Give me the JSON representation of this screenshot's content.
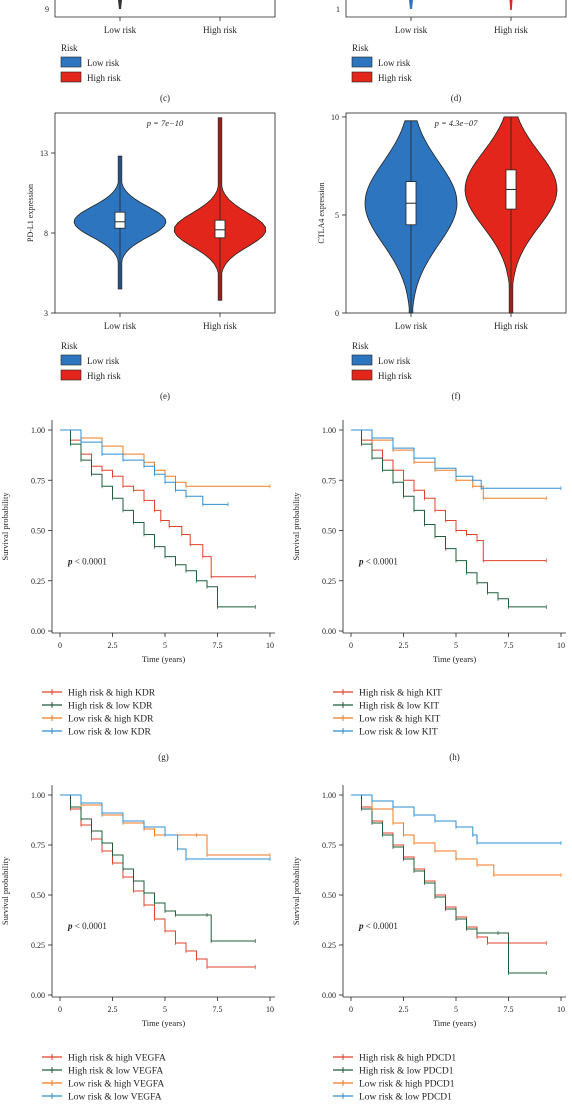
{
  "axis_defaults": {
    "time_label": "Time (years)",
    "survival_label": "Survival probability"
  },
  "panels_top": [
    {
      "id": "c",
      "caption": "(c)",
      "legend_title": "Risk",
      "legend_items": [
        "Low risk",
        "High risk"
      ],
      "tick_left": "9",
      "categories": [
        "Low risk",
        "High risk"
      ]
    },
    {
      "id": "d",
      "caption": "(d)",
      "legend_title": "Risk",
      "legend_items": [
        "Low risk",
        "High risk"
      ],
      "tick_left": "1",
      "categories": [
        "Low risk",
        "High risk"
      ]
    }
  ],
  "colors": {
    "low": "#2e75c0",
    "high": "#e3261b",
    "hr_high": "#e0412b",
    "hr_low": "#1f5e3a",
    "lr_high": "#f07a1f",
    "lr_low": "#2f8fd0"
  },
  "chart_data": [
    {
      "id": "e",
      "type": "violin",
      "caption": "(e)",
      "ylabel": "PD-L1 expression",
      "pvalue": "p = 7e−10",
      "yticks": [
        3,
        8,
        13
      ],
      "ylim": [
        3,
        15.5
      ],
      "categories": [
        "Low risk",
        "High risk"
      ],
      "legend_title": "Risk",
      "legend_items": [
        "Low risk",
        "High risk"
      ],
      "boxes": [
        {
          "q1": 8.3,
          "median": 8.7,
          "q3": 9.3,
          "min": 4.5,
          "max": 12.8
        },
        {
          "q1": 7.7,
          "median": 8.2,
          "q3": 8.8,
          "min": 3.8,
          "max": 15.2
        }
      ]
    },
    {
      "id": "f",
      "type": "violin",
      "caption": "(f)",
      "ylabel": "CTLA4 expression",
      "pvalue": "p = 4.3e−07",
      "yticks": [
        0,
        5,
        10
      ],
      "ylim": [
        0,
        10.2
      ],
      "categories": [
        "Low risk",
        "High risk"
      ],
      "legend_title": "Risk",
      "legend_items": [
        "Low risk",
        "High risk"
      ],
      "boxes": [
        {
          "q1": 4.5,
          "median": 5.6,
          "q3": 6.7,
          "min": 0.0,
          "max": 9.8
        },
        {
          "q1": 5.3,
          "median": 6.3,
          "q3": 7.3,
          "min": 0.0,
          "max": 10.0
        }
      ]
    },
    {
      "id": "g",
      "type": "line",
      "caption": "(g)",
      "xlabel": "Time (years)",
      "ylabel": "Survival probability",
      "pvalue": "p < 0.0001",
      "xticks": [
        "0",
        "2.5",
        "5",
        "7.5",
        "10"
      ],
      "yticks": [
        "0.00",
        "0.25",
        "0.50",
        "0.75",
        "1.00"
      ],
      "xlim": [
        0,
        10
      ],
      "ylim": [
        0,
        1
      ],
      "series": [
        {
          "name": "High risk & high KDR",
          "color_key": "hr_high",
          "points": [
            [
              0,
              1.0
            ],
            [
              0.5,
              0.95
            ],
            [
              1,
              0.88
            ],
            [
              1.5,
              0.82
            ],
            [
              2,
              0.8
            ],
            [
              2.5,
              0.77
            ],
            [
              3,
              0.72
            ],
            [
              3.5,
              0.7
            ],
            [
              4,
              0.65
            ],
            [
              4.5,
              0.6
            ],
            [
              4.8,
              0.55
            ],
            [
              5.2,
              0.52
            ],
            [
              5.8,
              0.48
            ],
            [
              6.2,
              0.43
            ],
            [
              6.8,
              0.37
            ],
            [
              7.2,
              0.27
            ],
            [
              9.3,
              0.27
            ]
          ]
        },
        {
          "name": "High risk & low KDR",
          "color_key": "hr_low",
          "points": [
            [
              0,
              1.0
            ],
            [
              0.5,
              0.93
            ],
            [
              1,
              0.85
            ],
            [
              1.5,
              0.78
            ],
            [
              2,
              0.72
            ],
            [
              2.5,
              0.66
            ],
            [
              3,
              0.6
            ],
            [
              3.5,
              0.54
            ],
            [
              4,
              0.48
            ],
            [
              4.5,
              0.42
            ],
            [
              5,
              0.37
            ],
            [
              5.5,
              0.33
            ],
            [
              6,
              0.3
            ],
            [
              6.5,
              0.25
            ],
            [
              7,
              0.22
            ],
            [
              7.5,
              0.12
            ],
            [
              9.3,
              0.12
            ]
          ]
        },
        {
          "name": "Low risk & high KDR",
          "color_key": "lr_high",
          "points": [
            [
              0,
              1.0
            ],
            [
              1,
              0.96
            ],
            [
              2,
              0.92
            ],
            [
              3,
              0.88
            ],
            [
              4,
              0.84
            ],
            [
              4.5,
              0.8
            ],
            [
              5,
              0.77
            ],
            [
              5.5,
              0.74
            ],
            [
              6,
              0.72
            ],
            [
              10,
              0.72
            ]
          ]
        },
        {
          "name": "Low risk & low KDR",
          "color_key": "lr_low",
          "points": [
            [
              0,
              1.0
            ],
            [
              1,
              0.94
            ],
            [
              2,
              0.88
            ],
            [
              3,
              0.85
            ],
            [
              4,
              0.82
            ],
            [
              4.5,
              0.78
            ],
            [
              5,
              0.74
            ],
            [
              5.5,
              0.7
            ],
            [
              6,
              0.67
            ],
            [
              6.8,
              0.63
            ],
            [
              8,
              0.63
            ]
          ]
        }
      ]
    },
    {
      "id": "h",
      "type": "line",
      "caption": "(h)",
      "xlabel": "Time (years)",
      "ylabel": "Survival probability",
      "pvalue": "p < 0.0001",
      "xticks": [
        "0",
        "2.5",
        "5",
        "7.5",
        "10"
      ],
      "yticks": [
        "0.00",
        "0.25",
        "0.50",
        "0.75",
        "1.00"
      ],
      "xlim": [
        0,
        10
      ],
      "ylim": [
        0,
        1
      ],
      "series": [
        {
          "name": "High risk & high KIT",
          "color_key": "hr_high",
          "points": [
            [
              0,
              1.0
            ],
            [
              0.5,
              0.95
            ],
            [
              1,
              0.9
            ],
            [
              1.5,
              0.85
            ],
            [
              2,
              0.8
            ],
            [
              2.5,
              0.75
            ],
            [
              3,
              0.7
            ],
            [
              3.5,
              0.66
            ],
            [
              4,
              0.6
            ],
            [
              4.5,
              0.55
            ],
            [
              5,
              0.5
            ],
            [
              5.5,
              0.48
            ],
            [
              6,
              0.45
            ],
            [
              6.3,
              0.35
            ],
            [
              9.3,
              0.35
            ]
          ]
        },
        {
          "name": "High risk & low KIT",
          "color_key": "hr_low",
          "points": [
            [
              0,
              1.0
            ],
            [
              0.5,
              0.93
            ],
            [
              1,
              0.86
            ],
            [
              1.5,
              0.8
            ],
            [
              2,
              0.74
            ],
            [
              2.5,
              0.67
            ],
            [
              3,
              0.6
            ],
            [
              3.5,
              0.53
            ],
            [
              4,
              0.47
            ],
            [
              4.5,
              0.41
            ],
            [
              5,
              0.35
            ],
            [
              5.5,
              0.29
            ],
            [
              6,
              0.24
            ],
            [
              6.5,
              0.19
            ],
            [
              7,
              0.16
            ],
            [
              7.5,
              0.12
            ],
            [
              9.3,
              0.12
            ]
          ]
        },
        {
          "name": "Low risk & high KIT",
          "color_key": "lr_high",
          "points": [
            [
              0,
              1.0
            ],
            [
              1,
              0.95
            ],
            [
              2,
              0.9
            ],
            [
              3,
              0.84
            ],
            [
              4,
              0.8
            ],
            [
              5,
              0.75
            ],
            [
              5.8,
              0.72
            ],
            [
              6.3,
              0.66
            ],
            [
              9.3,
              0.66
            ]
          ]
        },
        {
          "name": "Low risk & low KIT",
          "color_key": "lr_low",
          "points": [
            [
              0,
              1.0
            ],
            [
              1,
              0.96
            ],
            [
              2,
              0.91
            ],
            [
              3,
              0.86
            ],
            [
              4,
              0.81
            ],
            [
              5,
              0.77
            ],
            [
              5.8,
              0.75
            ],
            [
              6.2,
              0.71
            ],
            [
              10,
              0.71
            ]
          ]
        }
      ]
    },
    {
      "id": "i",
      "type": "line",
      "caption": "",
      "xlabel": "Time (years)",
      "ylabel": "Survival probability",
      "pvalue": "p < 0.0001",
      "xticks": [
        "0",
        "2.5",
        "5",
        "7.5",
        "10"
      ],
      "yticks": [
        "0.00",
        "0.25",
        "0.50",
        "0.75",
        "1.00"
      ],
      "xlim": [
        0,
        10
      ],
      "ylim": [
        0,
        1
      ],
      "series": [
        {
          "name": "High risk & high VEGFA",
          "color_key": "hr_high",
          "points": [
            [
              0,
              1.0
            ],
            [
              0.5,
              0.93
            ],
            [
              1,
              0.85
            ],
            [
              1.5,
              0.78
            ],
            [
              2,
              0.72
            ],
            [
              2.5,
              0.66
            ],
            [
              3,
              0.59
            ],
            [
              3.5,
              0.52
            ],
            [
              4,
              0.45
            ],
            [
              4.5,
              0.38
            ],
            [
              5,
              0.32
            ],
            [
              5.5,
              0.26
            ],
            [
              6,
              0.22
            ],
            [
              6.5,
              0.18
            ],
            [
              7,
              0.14
            ],
            [
              9.3,
              0.14
            ]
          ]
        },
        {
          "name": "High risk & low VEGFA",
          "color_key": "hr_low",
          "points": [
            [
              0,
              1.0
            ],
            [
              0.5,
              0.94
            ],
            [
              1,
              0.88
            ],
            [
              1.5,
              0.82
            ],
            [
              2,
              0.76
            ],
            [
              2.5,
              0.7
            ],
            [
              3,
              0.63
            ],
            [
              3.5,
              0.57
            ],
            [
              4,
              0.51
            ],
            [
              4.5,
              0.46
            ],
            [
              5,
              0.42
            ],
            [
              5.5,
              0.4
            ],
            [
              7,
              0.4
            ],
            [
              7.2,
              0.27
            ],
            [
              9.3,
              0.27
            ]
          ]
        },
        {
          "name": "Low risk & high VEGFA",
          "color_key": "lr_high",
          "points": [
            [
              0,
              1.0
            ],
            [
              1,
              0.95
            ],
            [
              2,
              0.9
            ],
            [
              3,
              0.86
            ],
            [
              4,
              0.83
            ],
            [
              4.5,
              0.8
            ],
            [
              6.5,
              0.8
            ],
            [
              7,
              0.7
            ],
            [
              10,
              0.7
            ]
          ]
        },
        {
          "name": "Low risk & low VEGFA",
          "color_key": "lr_low",
          "points": [
            [
              0,
              1.0
            ],
            [
              1,
              0.96
            ],
            [
              2,
              0.91
            ],
            [
              3,
              0.87
            ],
            [
              4,
              0.84
            ],
            [
              5,
              0.8
            ],
            [
              5.6,
              0.73
            ],
            [
              6,
              0.68
            ],
            [
              10,
              0.68
            ]
          ]
        }
      ]
    },
    {
      "id": "j",
      "type": "line",
      "caption": "",
      "xlabel": "Time (years)",
      "ylabel": "Survival probability",
      "pvalue": "p < 0.0001",
      "xticks": [
        "0",
        "2.5",
        "5",
        "7.5",
        "10"
      ],
      "yticks": [
        "0.00",
        "0.25",
        "0.50",
        "0.75",
        "1.00"
      ],
      "xlim": [
        0,
        10
      ],
      "ylim": [
        0,
        1
      ],
      "series": [
        {
          "name": "High risk & high PDCD1",
          "color_key": "hr_high",
          "points": [
            [
              0,
              1.0
            ],
            [
              0.5,
              0.94
            ],
            [
              1,
              0.87
            ],
            [
              1.5,
              0.81
            ],
            [
              2,
              0.75
            ],
            [
              2.5,
              0.69
            ],
            [
              3,
              0.63
            ],
            [
              3.5,
              0.57
            ],
            [
              4,
              0.5
            ],
            [
              4.5,
              0.44
            ],
            [
              5,
              0.39
            ],
            [
              5.5,
              0.34
            ],
            [
              6,
              0.29
            ],
            [
              6.5,
              0.26
            ],
            [
              9.3,
              0.26
            ]
          ]
        },
        {
          "name": "High risk & low PDCD1",
          "color_key": "hr_low",
          "points": [
            [
              0,
              1.0
            ],
            [
              0.5,
              0.93
            ],
            [
              1,
              0.86
            ],
            [
              1.5,
              0.8
            ],
            [
              2,
              0.74
            ],
            [
              2.5,
              0.68
            ],
            [
              3,
              0.62
            ],
            [
              3.5,
              0.56
            ],
            [
              4,
              0.49
            ],
            [
              4.5,
              0.43
            ],
            [
              5,
              0.38
            ],
            [
              5.5,
              0.33
            ],
            [
              6,
              0.31
            ],
            [
              7,
              0.31
            ],
            [
              7.5,
              0.11
            ],
            [
              9.3,
              0.11
            ]
          ]
        },
        {
          "name": "Low risk & high PDCD1",
          "color_key": "lr_high",
          "points": [
            [
              0,
              1.0
            ],
            [
              1,
              0.93
            ],
            [
              2,
              0.86
            ],
            [
              2.5,
              0.8
            ],
            [
              3,
              0.76
            ],
            [
              4,
              0.72
            ],
            [
              5,
              0.68
            ],
            [
              6,
              0.65
            ],
            [
              6.8,
              0.6
            ],
            [
              10,
              0.6
            ]
          ]
        },
        {
          "name": "Low risk & low PDCD1",
          "color_key": "lr_low",
          "points": [
            [
              0,
              1.0
            ],
            [
              1,
              0.97
            ],
            [
              2,
              0.94
            ],
            [
              3,
              0.9
            ],
            [
              4,
              0.87
            ],
            [
              5,
              0.84
            ],
            [
              5.8,
              0.8
            ],
            [
              6,
              0.76
            ],
            [
              10,
              0.76
            ]
          ]
        }
      ]
    }
  ]
}
